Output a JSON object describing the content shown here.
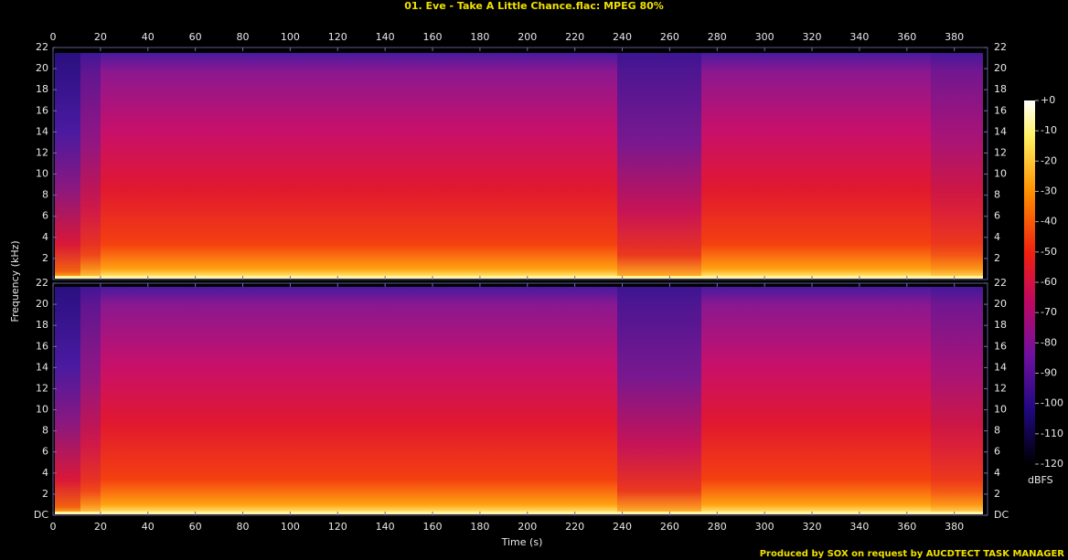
{
  "chart_data": {
    "type": "spectrogram",
    "title": "01. Eve - Take A Little Chance.flac: MPEG 80%",
    "xlabel": "Time (s)",
    "ylabel": "Frequency (kHz)",
    "xlim": [
      0,
      394
    ],
    "xticks": [
      0,
      20,
      40,
      60,
      80,
      100,
      120,
      140,
      160,
      180,
      200,
      220,
      240,
      260,
      280,
      300,
      320,
      340,
      360,
      380
    ],
    "channels": [
      {
        "ylim": [
          0,
          22
        ],
        "yticks": [
          2,
          4,
          6,
          8,
          10,
          12,
          14,
          16,
          18,
          20,
          22
        ]
      },
      {
        "ylim": [
          0,
          22
        ],
        "yticks": [
          {
            "value": 0,
            "label": "DC"
          },
          2,
          4,
          6,
          8,
          10,
          12,
          14,
          16,
          18,
          20,
          22
        ]
      }
    ],
    "colorbar": {
      "label": "dBFS",
      "ylim": [
        -120,
        0
      ],
      "yticks": [
        {
          "value": 0,
          "label": "+0"
        },
        -10,
        -20,
        -30,
        -40,
        -50,
        -60,
        -70,
        -80,
        -90,
        -100,
        -110,
        -120
      ]
    },
    "footer": "Produced by SOX on request by AUCDTECT TASK MANAGER"
  }
}
